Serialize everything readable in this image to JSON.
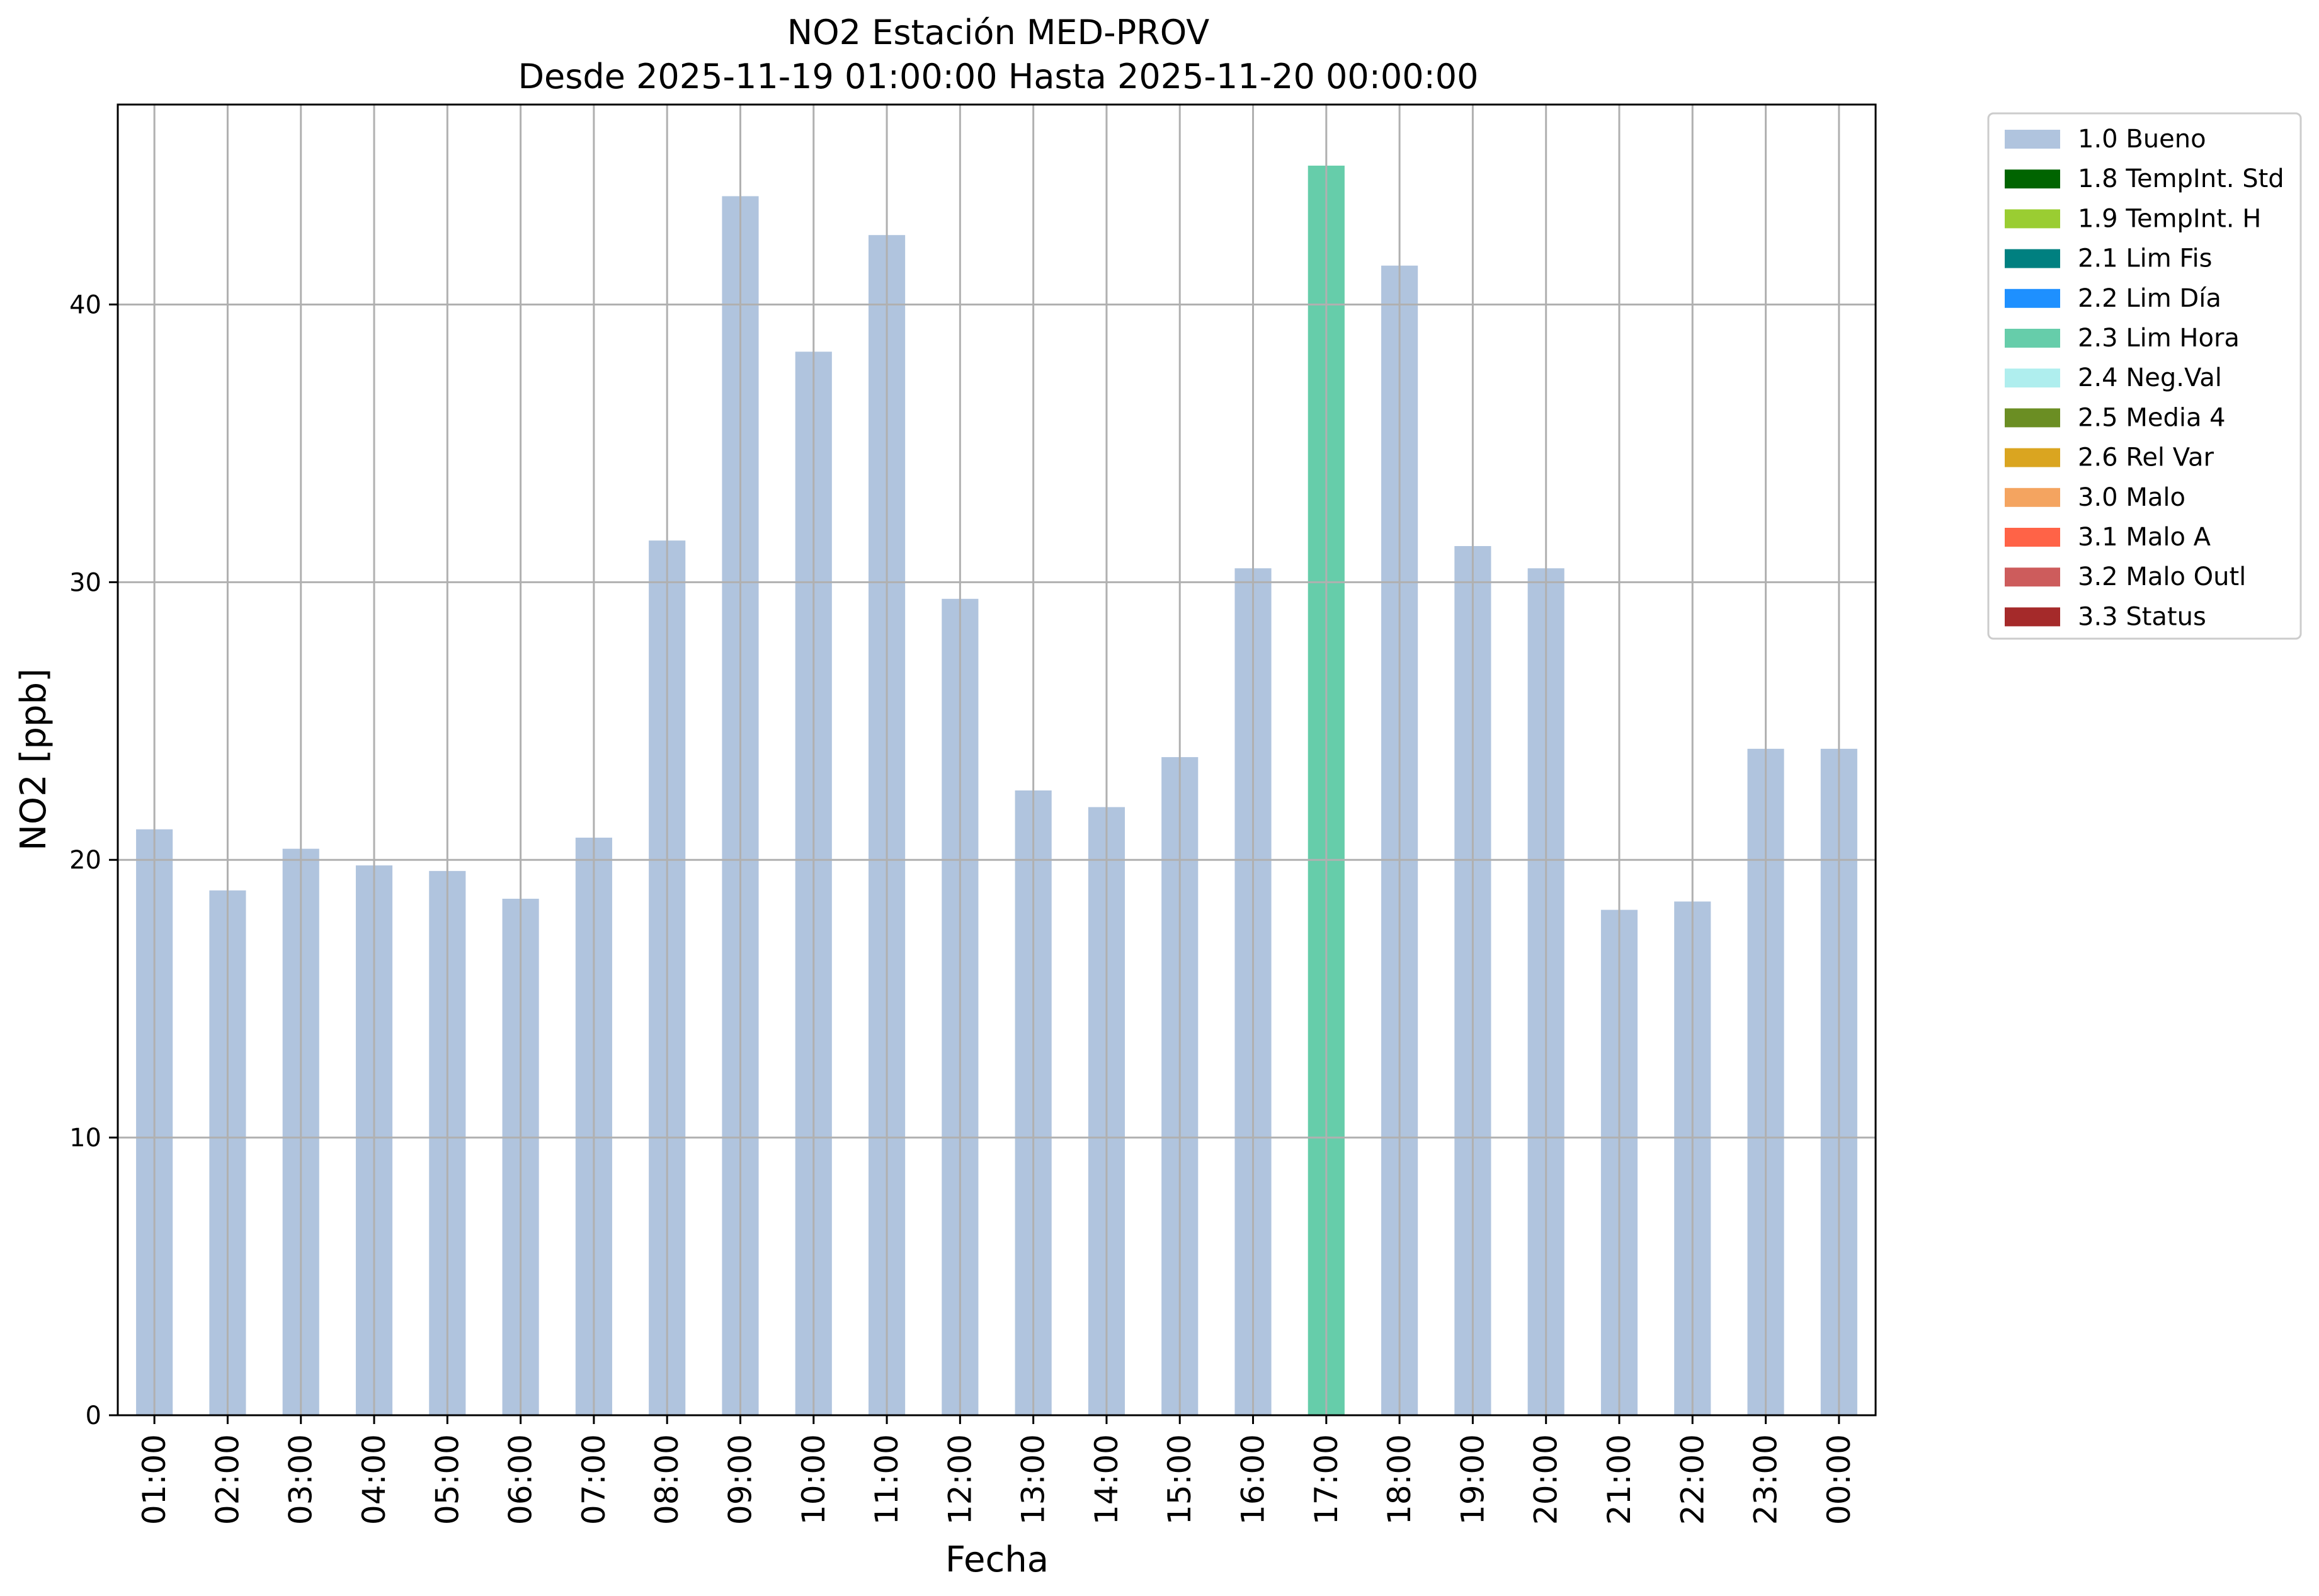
{
  "chart_data": {
    "type": "bar",
    "title": "NO2 Estación MED-PROV",
    "subtitle": "Desde 2025-11-19 01:00:00 Hasta 2025-11-20 00:00:00",
    "xlabel": "Fecha",
    "ylabel": "NO2 [ppb]",
    "ylim": [
      0,
      47.2
    ],
    "yticks": [
      0,
      10,
      20,
      30,
      40
    ],
    "grid": true,
    "legend_position": "outside-right-top",
    "categories": [
      "01:00",
      "02:00",
      "03:00",
      "04:00",
      "05:00",
      "06:00",
      "07:00",
      "08:00",
      "09:00",
      "10:00",
      "11:00",
      "12:00",
      "13:00",
      "14:00",
      "15:00",
      "16:00",
      "17:00",
      "18:00",
      "19:00",
      "20:00",
      "21:00",
      "22:00",
      "23:00",
      "00:00"
    ],
    "values": [
      21.1,
      18.9,
      20.4,
      19.8,
      19.6,
      18.6,
      20.8,
      31.5,
      43.9,
      38.3,
      42.5,
      29.4,
      22.5,
      21.9,
      23.7,
      30.5,
      45.0,
      41.4,
      31.3,
      30.5,
      18.2,
      18.5,
      24.0,
      24.0
    ],
    "bar_flags": [
      "1.0 Bueno",
      "1.0 Bueno",
      "1.0 Bueno",
      "1.0 Bueno",
      "1.0 Bueno",
      "1.0 Bueno",
      "1.0 Bueno",
      "1.0 Bueno",
      "1.0 Bueno",
      "1.0 Bueno",
      "1.0 Bueno",
      "1.0 Bueno",
      "1.0 Bueno",
      "1.0 Bueno",
      "1.0 Bueno",
      "1.0 Bueno",
      "2.3 Lim Hora",
      "1.0 Bueno",
      "1.0 Bueno",
      "1.0 Bueno",
      "1.0 Bueno",
      "1.0 Bueno",
      "1.0 Bueno",
      "1.0 Bueno"
    ],
    "legend": [
      {
        "label": "1.0 Bueno",
        "color": "#B0C4DE"
      },
      {
        "label": "1.8 TempInt. Std",
        "color": "#006400"
      },
      {
        "label": "1.9 TempInt. H",
        "color": "#9ACD32"
      },
      {
        "label": "2.1 Lim Fis",
        "color": "#008080"
      },
      {
        "label": "2.2 Lim Día",
        "color": "#1E90FF"
      },
      {
        "label": "2.3 Lim Hora",
        "color": "#66CDAA"
      },
      {
        "label": "2.4 Neg.Val",
        "color": "#AFEEEE"
      },
      {
        "label": "2.5 Media 4",
        "color": "#6B8E23"
      },
      {
        "label": "2.6 Rel Var",
        "color": "#DAA520"
      },
      {
        "label": "3.0 Malo",
        "color": "#F4A460"
      },
      {
        "label": "3.1 Malo A",
        "color": "#FF6347"
      },
      {
        "label": "3.2 Malo Outl",
        "color": "#CD5C5C"
      },
      {
        "label": "3.3 Status",
        "color": "#A52A2A"
      }
    ],
    "grid_color": "#b0b0b0"
  }
}
